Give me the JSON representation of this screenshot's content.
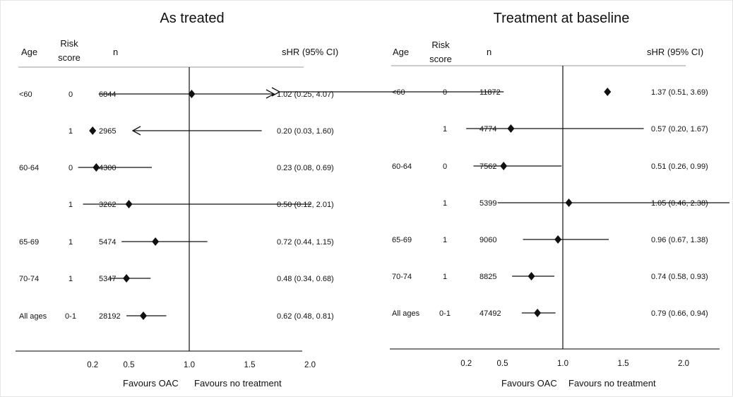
{
  "chart_data": [
    {
      "type": "forest",
      "title": "As treated",
      "headers": {
        "age": "Age",
        "risk_line1": "Risk",
        "risk_line2": "score",
        "n": "n",
        "effect": "sHR (95% CI)"
      },
      "x_scale": "linear",
      "x_ticks": [
        0.2,
        0.5,
        1.0,
        1.5,
        2.0
      ],
      "x_tick_labels": [
        "0.2",
        "0.5",
        "1.0",
        "1.5",
        "2.0"
      ],
      "reference_line": 1.0,
      "favours_left": "Favours OAC",
      "favours_right": "Favours no treatment",
      "rows": [
        {
          "age": "<60",
          "risk": "0",
          "n": "6844",
          "hr": 1.02,
          "lo": 0.25,
          "hi": 4.07,
          "ci_text": "1.02 (0.25, 4.07)",
          "arrow_right": true,
          "arrow_left": false
        },
        {
          "age": "",
          "risk": "1",
          "n": "2965",
          "hr": 0.2,
          "lo": 0.03,
          "hi": 1.6,
          "ci_text": "0.20 (0.03, 1.60)",
          "arrow_right": false,
          "arrow_left": true
        },
        {
          "age": "60-64",
          "risk": "0",
          "n": "4300",
          "hr": 0.23,
          "lo": 0.08,
          "hi": 0.69,
          "ci_text": "0.23 (0.08, 0.69)",
          "arrow_right": false,
          "arrow_left": false
        },
        {
          "age": "",
          "risk": "1",
          "n": "3262",
          "hr": 0.5,
          "lo": 0.12,
          "hi": 2.01,
          "ci_text": "0.50 (0.12, 2.01)",
          "arrow_right": false,
          "arrow_left": false
        },
        {
          "age": "65-69",
          "risk": "1",
          "n": "5474",
          "hr": 0.72,
          "lo": 0.44,
          "hi": 1.15,
          "ci_text": "0.72 (0.44, 1.15)",
          "arrow_right": false,
          "arrow_left": false
        },
        {
          "age": "70-74",
          "risk": "1",
          "n": "5347",
          "hr": 0.48,
          "lo": 0.34,
          "hi": 0.68,
          "ci_text": "0.48 (0.34, 0.68)",
          "arrow_right": false,
          "arrow_left": false
        },
        {
          "age": "All ages",
          "risk": "0-1",
          "n": "28192",
          "hr": 0.62,
          "lo": 0.48,
          "hi": 0.81,
          "ci_text": "0.62 (0.48, 0.81)",
          "arrow_right": false,
          "arrow_left": false
        }
      ]
    },
    {
      "type": "forest",
      "title": "Treatment at baseline",
      "headers": {
        "age": "Age",
        "risk_line1": "Risk",
        "risk_line2": "score",
        "n": "n",
        "effect": "sHR (95% CI)"
      },
      "x_scale": "linear",
      "x_ticks": [
        0.2,
        0.5,
        1.0,
        1.5,
        2.0
      ],
      "x_tick_labels": [
        "0.2",
        "0.5",
        "1.0",
        "1.5",
        "2.0"
      ],
      "reference_line": 1.0,
      "favours_left": "Favours OAC",
      "favours_right": "Favours no treatment",
      "rows": [
        {
          "age": "<60",
          "risk": "0",
          "n": "11872",
          "hr": 1.37,
          "lo": 0.51,
          "hi": 3.69,
          "ci_text": "1.37 (0.51, 3.69)",
          "arrow_right": true,
          "arrow_left": false
        },
        {
          "age": "",
          "risk": "1",
          "n": "4774",
          "hr": 0.57,
          "lo": 0.2,
          "hi": 1.67,
          "ci_text": "0.57 (0.20, 1.67)",
          "arrow_right": false,
          "arrow_left": false
        },
        {
          "age": "60-64",
          "risk": "0",
          "n": "7562",
          "hr": 0.51,
          "lo": 0.26,
          "hi": 0.99,
          "ci_text": "0.51 (0.26, 0.99)",
          "arrow_right": false,
          "arrow_left": false
        },
        {
          "age": "",
          "risk": "1",
          "n": "5399",
          "hr": 1.05,
          "lo": 0.46,
          "hi": 2.38,
          "ci_text": "1.05 (0.46, 2.38)",
          "arrow_right": false,
          "arrow_left": false
        },
        {
          "age": "65-69",
          "risk": "1",
          "n": "9060",
          "hr": 0.96,
          "lo": 0.67,
          "hi": 1.38,
          "ci_text": "0.96 (0.67, 1.38)",
          "arrow_right": false,
          "arrow_left": false
        },
        {
          "age": "70-74",
          "risk": "1",
          "n": "8825",
          "hr": 0.74,
          "lo": 0.58,
          "hi": 0.93,
          "ci_text": "0.74 (0.58, 0.93)",
          "arrow_right": false,
          "arrow_left": false
        },
        {
          "age": "All ages",
          "risk": "0-1",
          "n": "47492",
          "hr": 0.79,
          "lo": 0.66,
          "hi": 0.94,
          "ci_text": "0.79 (0.66, 0.94)",
          "arrow_right": false,
          "arrow_left": false
        }
      ]
    }
  ]
}
